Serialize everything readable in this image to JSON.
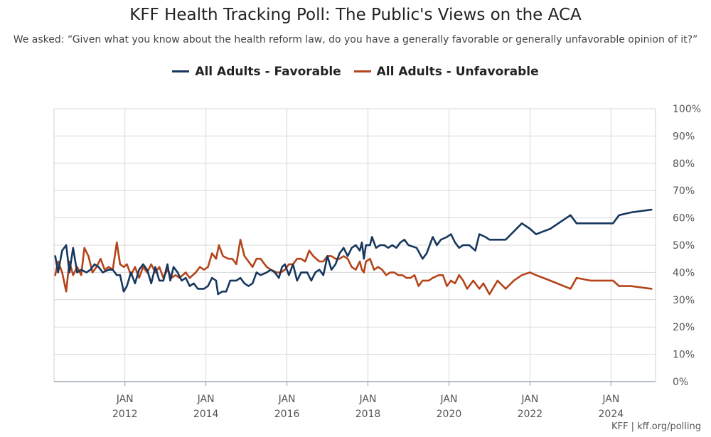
{
  "chart_data": {
    "type": "line",
    "title": "KFF Health Tracking Poll: The Public's Views on the ACA",
    "subtitle": "We asked: “Given what you know about the health reform law, do you have a generally favorable or generally unfavorable opinion of it?”",
    "x_axis": {
      "type": "time",
      "range": [
        2010.25,
        2025.1
      ],
      "ticks": [
        {
          "value": 2012,
          "line1": "JAN",
          "line2": "2012"
        },
        {
          "value": 2014,
          "line1": "JAN",
          "line2": "2014"
        },
        {
          "value": 2016,
          "line1": "JAN",
          "line2": "2016"
        },
        {
          "value": 2018,
          "line1": "JAN",
          "line2": "2018"
        },
        {
          "value": 2020,
          "line1": "JAN",
          "line2": "2020"
        },
        {
          "value": 2022,
          "line1": "JAN",
          "line2": "2022"
        },
        {
          "value": 2024,
          "line1": "JAN",
          "line2": "2024"
        }
      ]
    },
    "y_axis": {
      "range": [
        0,
        100
      ],
      "ticks": [
        0,
        10,
        20,
        30,
        40,
        50,
        60,
        70,
        80,
        90,
        100
      ],
      "tick_labels": [
        "0%",
        "10%",
        "20%",
        "30%",
        "40%",
        "50%",
        "60%",
        "70%",
        "80%",
        "90%",
        "100%"
      ],
      "position": "right"
    },
    "grid": true,
    "legend_position": "top-center",
    "series": [
      {
        "name": "All Adults - Favorable",
        "color": "#17375e",
        "points": [
          [
            2010.28,
            46
          ],
          [
            2010.35,
            40
          ],
          [
            2010.45,
            48
          ],
          [
            2010.55,
            50
          ],
          [
            2010.63,
            40
          ],
          [
            2010.72,
            49
          ],
          [
            2010.82,
            40
          ],
          [
            2010.92,
            41
          ],
          [
            2011.05,
            40
          ],
          [
            2011.15,
            41
          ],
          [
            2011.25,
            43
          ],
          [
            2011.35,
            42
          ],
          [
            2011.45,
            40
          ],
          [
            2011.6,
            41
          ],
          [
            2011.7,
            41
          ],
          [
            2011.8,
            39
          ],
          [
            2011.88,
            39
          ],
          [
            2011.97,
            33
          ],
          [
            2012.05,
            35
          ],
          [
            2012.15,
            40
          ],
          [
            2012.25,
            36
          ],
          [
            2012.35,
            41
          ],
          [
            2012.45,
            43
          ],
          [
            2012.55,
            41
          ],
          [
            2012.65,
            36
          ],
          [
            2012.75,
            42
          ],
          [
            2012.85,
            37
          ],
          [
            2012.95,
            37
          ],
          [
            2013.05,
            43
          ],
          [
            2013.12,
            37
          ],
          [
            2013.2,
            42
          ],
          [
            2013.3,
            40
          ],
          [
            2013.4,
            37
          ],
          [
            2013.5,
            38
          ],
          [
            2013.6,
            35
          ],
          [
            2013.7,
            36
          ],
          [
            2013.8,
            34
          ],
          [
            2013.95,
            34
          ],
          [
            2014.05,
            35
          ],
          [
            2014.15,
            38
          ],
          [
            2014.25,
            37
          ],
          [
            2014.3,
            32
          ],
          [
            2014.4,
            33
          ],
          [
            2014.5,
            33
          ],
          [
            2014.6,
            37
          ],
          [
            2014.75,
            37
          ],
          [
            2014.85,
            38
          ],
          [
            2014.95,
            36
          ],
          [
            2015.05,
            35
          ],
          [
            2015.15,
            36
          ],
          [
            2015.25,
            40
          ],
          [
            2015.35,
            39
          ],
          [
            2015.5,
            40
          ],
          [
            2015.6,
            41
          ],
          [
            2015.7,
            40
          ],
          [
            2015.8,
            38
          ],
          [
            2015.88,
            42
          ],
          [
            2015.95,
            43
          ],
          [
            2016.05,
            39
          ],
          [
            2016.15,
            43
          ],
          [
            2016.25,
            37
          ],
          [
            2016.35,
            40
          ],
          [
            2016.5,
            40
          ],
          [
            2016.6,
            37
          ],
          [
            2016.7,
            40
          ],
          [
            2016.8,
            41
          ],
          [
            2016.9,
            39
          ],
          [
            2017.0,
            46
          ],
          [
            2017.1,
            41
          ],
          [
            2017.2,
            43
          ],
          [
            2017.3,
            47
          ],
          [
            2017.4,
            49
          ],
          [
            2017.5,
            46
          ],
          [
            2017.6,
            49
          ],
          [
            2017.7,
            50
          ],
          [
            2017.8,
            48
          ],
          [
            2017.85,
            51
          ],
          [
            2017.9,
            45
          ],
          [
            2017.95,
            50
          ],
          [
            2018.05,
            50
          ],
          [
            2018.1,
            53
          ],
          [
            2018.2,
            49
          ],
          [
            2018.3,
            50
          ],
          [
            2018.4,
            50
          ],
          [
            2018.5,
            49
          ],
          [
            2018.6,
            50
          ],
          [
            2018.7,
            49
          ],
          [
            2018.8,
            51
          ],
          [
            2018.9,
            52
          ],
          [
            2019.0,
            50
          ],
          [
            2019.2,
            49
          ],
          [
            2019.35,
            45
          ],
          [
            2019.45,
            47
          ],
          [
            2019.6,
            53
          ],
          [
            2019.7,
            50
          ],
          [
            2019.8,
            52
          ],
          [
            2019.95,
            53
          ],
          [
            2020.05,
            54
          ],
          [
            2020.15,
            51
          ],
          [
            2020.25,
            49
          ],
          [
            2020.35,
            50
          ],
          [
            2020.5,
            50
          ],
          [
            2020.65,
            48
          ],
          [
            2020.75,
            54
          ],
          [
            2020.9,
            53
          ],
          [
            2021.0,
            52
          ],
          [
            2021.2,
            52
          ],
          [
            2021.4,
            52
          ],
          [
            2021.6,
            55
          ],
          [
            2021.8,
            58
          ],
          [
            2022.0,
            56
          ],
          [
            2022.15,
            54
          ],
          [
            2022.5,
            56
          ],
          [
            2023.0,
            61
          ],
          [
            2023.15,
            58
          ],
          [
            2023.5,
            58
          ],
          [
            2023.8,
            58
          ],
          [
            2024.05,
            58
          ],
          [
            2024.2,
            61
          ],
          [
            2024.5,
            62
          ],
          [
            2025.0,
            63
          ]
        ]
      },
      {
        "name": "All Adults - Unfavorable",
        "color": "#b4441a",
        "points": [
          [
            2010.28,
            39
          ],
          [
            2010.35,
            44
          ],
          [
            2010.45,
            40
          ],
          [
            2010.55,
            33
          ],
          [
            2010.63,
            44
          ],
          [
            2010.72,
            39
          ],
          [
            2010.82,
            42
          ],
          [
            2010.92,
            39
          ],
          [
            2011.0,
            49
          ],
          [
            2011.1,
            46
          ],
          [
            2011.2,
            40
          ],
          [
            2011.3,
            42
          ],
          [
            2011.4,
            45
          ],
          [
            2011.5,
            41
          ],
          [
            2011.6,
            42
          ],
          [
            2011.7,
            41
          ],
          [
            2011.8,
            51
          ],
          [
            2011.88,
            43
          ],
          [
            2011.97,
            42
          ],
          [
            2012.05,
            43
          ],
          [
            2012.15,
            39
          ],
          [
            2012.25,
            42
          ],
          [
            2012.35,
            38
          ],
          [
            2012.45,
            42
          ],
          [
            2012.55,
            40
          ],
          [
            2012.65,
            43
          ],
          [
            2012.75,
            40
          ],
          [
            2012.85,
            42
          ],
          [
            2012.95,
            38
          ],
          [
            2013.05,
            41
          ],
          [
            2013.15,
            38
          ],
          [
            2013.25,
            39
          ],
          [
            2013.35,
            38
          ],
          [
            2013.5,
            40
          ],
          [
            2013.6,
            38
          ],
          [
            2013.75,
            40
          ],
          [
            2013.85,
            42
          ],
          [
            2013.95,
            41
          ],
          [
            2014.05,
            42
          ],
          [
            2014.15,
            47
          ],
          [
            2014.25,
            45
          ],
          [
            2014.32,
            50
          ],
          [
            2014.42,
            46
          ],
          [
            2014.55,
            45
          ],
          [
            2014.65,
            45
          ],
          [
            2014.75,
            43
          ],
          [
            2014.85,
            52
          ],
          [
            2014.95,
            46
          ],
          [
            2015.05,
            44
          ],
          [
            2015.15,
            42
          ],
          [
            2015.25,
            45
          ],
          [
            2015.35,
            45
          ],
          [
            2015.5,
            42
          ],
          [
            2015.6,
            41
          ],
          [
            2015.75,
            40
          ],
          [
            2015.85,
            40
          ],
          [
            2015.95,
            41
          ],
          [
            2016.05,
            43
          ],
          [
            2016.15,
            43
          ],
          [
            2016.25,
            45
          ],
          [
            2016.35,
            45
          ],
          [
            2016.45,
            44
          ],
          [
            2016.55,
            48
          ],
          [
            2016.65,
            46
          ],
          [
            2016.8,
            44
          ],
          [
            2016.9,
            44
          ],
          [
            2017.0,
            46
          ],
          [
            2017.1,
            46
          ],
          [
            2017.2,
            45
          ],
          [
            2017.3,
            45
          ],
          [
            2017.4,
            46
          ],
          [
            2017.5,
            45
          ],
          [
            2017.6,
            42
          ],
          [
            2017.7,
            41
          ],
          [
            2017.8,
            44
          ],
          [
            2017.85,
            41
          ],
          [
            2017.9,
            40
          ],
          [
            2017.95,
            44
          ],
          [
            2018.05,
            45
          ],
          [
            2018.15,
            41
          ],
          [
            2018.25,
            42
          ],
          [
            2018.35,
            41
          ],
          [
            2018.45,
            39
          ],
          [
            2018.55,
            40
          ],
          [
            2018.65,
            40
          ],
          [
            2018.75,
            39
          ],
          [
            2018.85,
            39
          ],
          [
            2018.95,
            38
          ],
          [
            2019.05,
            38
          ],
          [
            2019.15,
            39
          ],
          [
            2019.25,
            35
          ],
          [
            2019.35,
            37
          ],
          [
            2019.5,
            37
          ],
          [
            2019.6,
            38
          ],
          [
            2019.75,
            39
          ],
          [
            2019.85,
            39
          ],
          [
            2019.95,
            35
          ],
          [
            2020.05,
            37
          ],
          [
            2020.15,
            36
          ],
          [
            2020.25,
            39
          ],
          [
            2020.35,
            37
          ],
          [
            2020.45,
            34
          ],
          [
            2020.6,
            37
          ],
          [
            2020.75,
            34
          ],
          [
            2020.85,
            36
          ],
          [
            2021.0,
            32
          ],
          [
            2021.2,
            37
          ],
          [
            2021.4,
            34
          ],
          [
            2021.6,
            37
          ],
          [
            2021.8,
            39
          ],
          [
            2022.0,
            40
          ],
          [
            2022.15,
            39
          ],
          [
            2022.5,
            37
          ],
          [
            2023.0,
            34
          ],
          [
            2023.15,
            38
          ],
          [
            2023.5,
            37
          ],
          [
            2023.8,
            37
          ],
          [
            2024.05,
            37
          ],
          [
            2024.2,
            35
          ],
          [
            2024.5,
            35
          ],
          [
            2025.0,
            34
          ]
        ]
      }
    ]
  },
  "source": "KFF | kff.org/polling"
}
